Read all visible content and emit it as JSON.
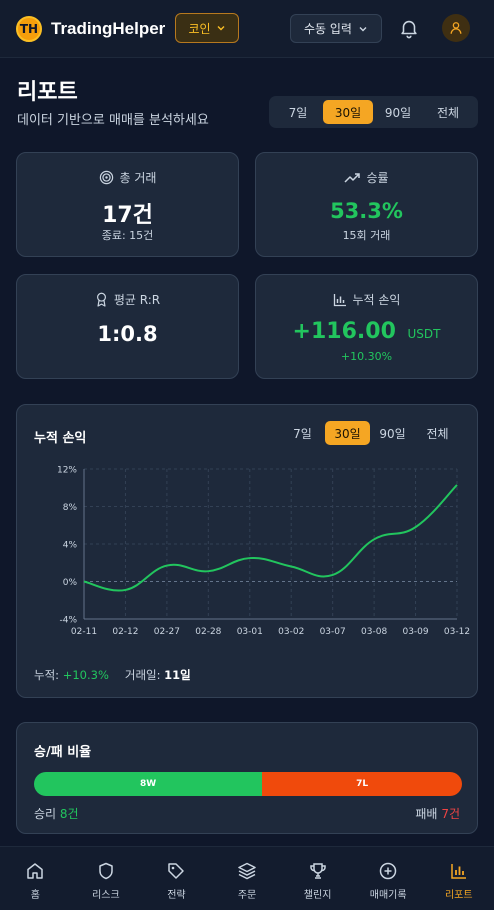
{
  "header": {
    "brand": "TradingHelper",
    "logo_text": "TH",
    "coin_button": "코인",
    "manual_button": "수동 입력",
    "icons": [
      "logo-icon",
      "bell-icon",
      "user-icon"
    ]
  },
  "page": {
    "title": "리포트",
    "subtitle": "데이터 기반으로 매매를 분석하세요"
  },
  "period_filter": {
    "options": [
      "7일",
      "30일",
      "90일",
      "전체"
    ],
    "selected": "30일"
  },
  "stats": {
    "total_trades": {
      "label": "총 거래",
      "value": "17건",
      "sub": "종료: 15건",
      "icon": "target-icon"
    },
    "win_rate": {
      "label": "승률",
      "value": "53.3%",
      "sub": "15회 거래",
      "icon": "trend-up-icon"
    },
    "avg_rr": {
      "label": "평균 R:R",
      "value": "1:0.8",
      "icon": "award-icon"
    },
    "cum_pnl": {
      "label": "누적 손익",
      "value": "+116.00",
      "unit": "USDT",
      "sub": "+10.30%",
      "icon": "bar-chart-icon"
    }
  },
  "chart_section": {
    "title": "누적 손익",
    "filter_options": [
      "7일",
      "30일",
      "90일",
      "전체"
    ],
    "selected": "30일",
    "footer": {
      "cum_label": "누적:",
      "cum_value": "+10.3%",
      "days_label": "거래일:",
      "days_value": "11일"
    }
  },
  "chart_data": {
    "type": "line",
    "x": [
      "02-11",
      "02-12",
      "02-27",
      "02-28",
      "03-01",
      "03-02",
      "03-07",
      "03-08",
      "03-09",
      "03-12"
    ],
    "series": [
      {
        "values": [
          0,
          -0.9,
          1.7,
          1.1,
          2.5,
          1.6,
          0.7,
          4.5,
          5.8,
          10.3
        ]
      }
    ],
    "yticks": [
      "12%",
      "8%",
      "4%",
      "0%",
      "-4%"
    ],
    "ylim": [
      -4,
      12
    ],
    "grid": true,
    "line_color": "#22c55e"
  },
  "win_loss": {
    "title": "승/패 비율",
    "wins": 8,
    "losses": 7,
    "win_bar_label": "8W",
    "loss_bar_label": "7L",
    "win_label": "승리",
    "win_count": "8건",
    "loss_label": "패배",
    "loss_count": "7건"
  },
  "bottom_nav": [
    {
      "label": "홈",
      "icon": "home-icon"
    },
    {
      "label": "리스크",
      "icon": "shield-icon"
    },
    {
      "label": "전략",
      "icon": "tag-icon"
    },
    {
      "label": "주문",
      "icon": "layers-icon"
    },
    {
      "label": "챌린지",
      "icon": "trophy-icon"
    },
    {
      "label": "매매기록",
      "icon": "plus-circle-icon"
    },
    {
      "label": "리포트",
      "icon": "bar-chart-icon",
      "active": true
    }
  ],
  "colors": {
    "accent": "#f5a623",
    "positive": "#22c55e",
    "negative": "#ef4444",
    "background": "#0f172a",
    "card": "#1e293b"
  }
}
